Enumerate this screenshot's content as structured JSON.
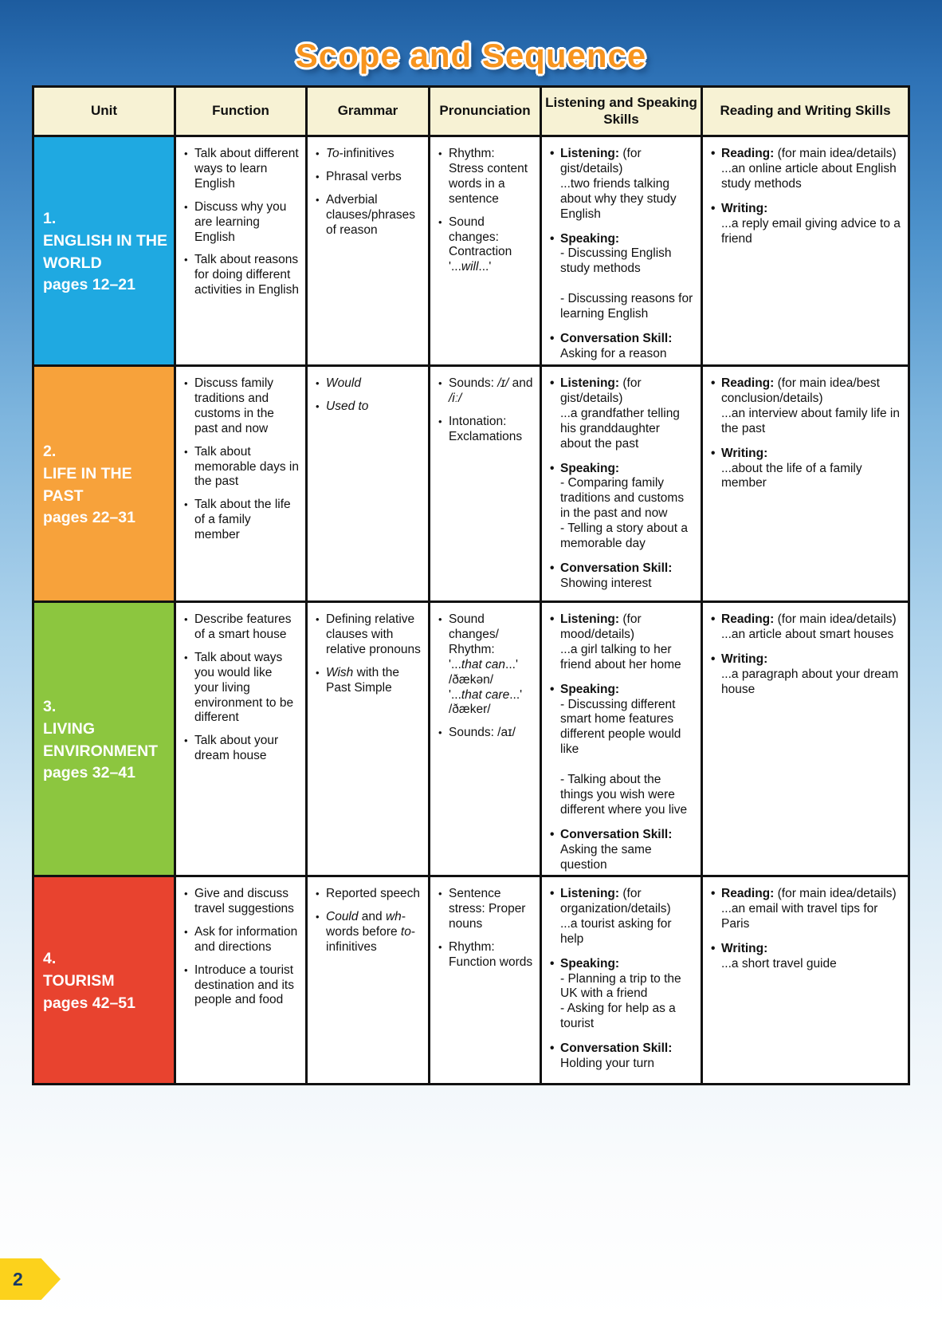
{
  "page": {
    "title": "Scope and Sequence",
    "page_number": "2"
  },
  "colors": {
    "title_orange": "#f7941e",
    "header_bg": "#f7f2d4",
    "background_blue": "#2e72b6",
    "page_tab_yellow": "#fcd21c"
  },
  "table": {
    "headers": [
      "Unit",
      "Function",
      "Grammar",
      "Pronunciation",
      "Listening and Speaking Skills",
      "Reading and Writing Skills"
    ],
    "rows": [
      {
        "unit_number": "1.",
        "unit_name": "ENGLISH IN THE WORLD",
        "unit_pages": "pages 12–21",
        "unit_color": "#1fa9e1",
        "function": [
          [
            {
              "t": "Talk about different ways to learn English"
            }
          ],
          [
            {
              "t": "Discuss why you are learning English"
            }
          ],
          [
            {
              "t": "Talk about reasons for doing different activities in English"
            }
          ]
        ],
        "grammar": [
          [
            {
              "t": "To",
              "s": "i"
            },
            {
              "t": "-infinitives"
            }
          ],
          [
            {
              "t": "Phrasal verbs"
            }
          ],
          [
            {
              "t": "Adverbial clauses/phrases of reason"
            }
          ]
        ],
        "pronunciation": [
          [
            {
              "t": "Rhythm:\nStress content words in a sentence"
            }
          ],
          [
            {
              "t": "Sound changes:\nContraction\n'..."
            },
            {
              "t": "will",
              "s": "i"
            },
            {
              "t": "...'"
            }
          ]
        ],
        "listening_speaking": [
          [
            {
              "t": "Listening:",
              "s": "b"
            },
            {
              "t": " (for gist/details)\n...two friends talking about why they study English"
            }
          ],
          [
            {
              "t": "Speaking:",
              "s": "b"
            },
            {
              "t": "\n- Discussing English study methods\n\n- Discussing reasons for learning English"
            }
          ],
          [
            {
              "t": "Conversation Skill:",
              "s": "b"
            },
            {
              "t": "\nAsking for a reason"
            }
          ]
        ],
        "reading_writing": [
          [
            {
              "t": "Reading:",
              "s": "b"
            },
            {
              "t": " (for main idea/details)\n...an online article about English study methods"
            }
          ],
          [
            {
              "t": "Writing:",
              "s": "b"
            },
            {
              "t": "\n...a reply email giving advice to a friend"
            }
          ]
        ]
      },
      {
        "unit_number": "2.",
        "unit_name": "LIFE IN THE PAST",
        "unit_pages": "pages 22–31",
        "unit_color": "#f7a23b",
        "function": [
          [
            {
              "t": "Discuss family traditions and customs in the past and now"
            }
          ],
          [
            {
              "t": "Talk about memorable days in the past"
            }
          ],
          [
            {
              "t": "Talk about the life of a family member"
            }
          ]
        ],
        "grammar": [
          [
            {
              "t": "Would",
              "s": "i"
            }
          ],
          [
            {
              "t": "Used to",
              "s": "i"
            }
          ]
        ],
        "pronunciation": [
          [
            {
              "t": "Sounds: "
            },
            {
              "t": "/ɪ/",
              "s": "i"
            },
            {
              "t": " and "
            },
            {
              "t": "/iː/",
              "s": "i"
            }
          ],
          [
            {
              "t": "Intonation:\nExclamations"
            }
          ]
        ],
        "listening_speaking": [
          [
            {
              "t": "Listening:",
              "s": "b"
            },
            {
              "t": " (for gist/details)\n...a grandfather telling his granddaughter about the past"
            }
          ],
          [
            {
              "t": "Speaking:",
              "s": "b"
            },
            {
              "t": "\n- Comparing family traditions and customs in the past and now\n- Telling a story about a memorable day"
            }
          ],
          [
            {
              "t": "Conversation Skill:",
              "s": "b"
            },
            {
              "t": "\nShowing interest"
            }
          ]
        ],
        "reading_writing": [
          [
            {
              "t": "Reading:",
              "s": "b"
            },
            {
              "t": " (for main idea/best conclusion/details)\n...an interview about family life in the past"
            }
          ],
          [
            {
              "t": "Writing:",
              "s": "b"
            },
            {
              "t": "\n...about the life of a family member"
            }
          ]
        ]
      },
      {
        "unit_number": "3.",
        "unit_name": "LIVING ENVIRONMENT",
        "unit_pages": "pages 32–41",
        "unit_color": "#8cc63f",
        "function": [
          [
            {
              "t": "Describe features of a smart house"
            }
          ],
          [
            {
              "t": "Talk about ways you would like your living environment to be different"
            }
          ],
          [
            {
              "t": "Talk about your dream house"
            }
          ]
        ],
        "grammar": [
          [
            {
              "t": "Defining relative clauses with relative pronouns"
            }
          ],
          [
            {
              "t": "Wish",
              "s": "i"
            },
            {
              "t": " with the Past Simple"
            }
          ]
        ],
        "pronunciation": [
          [
            {
              "t": "Sound changes/\nRhythm:\n'..."
            },
            {
              "t": "that can",
              "s": "i"
            },
            {
              "t": "...'\n/ðækən/\n'..."
            },
            {
              "t": "that care",
              "s": "i"
            },
            {
              "t": "...'\n/ðæker/"
            }
          ],
          [
            {
              "t": "Sounds: /aɪ/"
            }
          ]
        ],
        "listening_speaking": [
          [
            {
              "t": "Listening:",
              "s": "b"
            },
            {
              "t": " (for mood/details)\n...a girl talking to her friend about her home"
            }
          ],
          [
            {
              "t": "Speaking:",
              "s": "b"
            },
            {
              "t": "\n- Discussing different smart home features different people would like\n\n- Talking about the things you wish were different where you live"
            }
          ],
          [
            {
              "t": "Conversation Skill:",
              "s": "b"
            },
            {
              "t": "\nAsking the same question"
            }
          ]
        ],
        "reading_writing": [
          [
            {
              "t": "Reading:",
              "s": "b"
            },
            {
              "t": " (for main idea/details)\n...an article about smart houses"
            }
          ],
          [
            {
              "t": "Writing:",
              "s": "b"
            },
            {
              "t": "\n...a paragraph about your dream house"
            }
          ]
        ]
      },
      {
        "unit_number": "4.",
        "unit_name": "TOURISM",
        "unit_pages": "pages 42–51",
        "unit_color": "#e8432f",
        "function": [
          [
            {
              "t": "Give and discuss travel suggestions"
            }
          ],
          [
            {
              "t": "Ask for information and directions"
            }
          ],
          [
            {
              "t": "Introduce a tourist destination and its people and food"
            }
          ]
        ],
        "grammar": [
          [
            {
              "t": "Reported speech"
            }
          ],
          [
            {
              "t": "Could",
              "s": "i"
            },
            {
              "t": " and "
            },
            {
              "t": "wh",
              "s": "i"
            },
            {
              "t": "-words before "
            },
            {
              "t": "to",
              "s": "i"
            },
            {
              "t": "-infinitives"
            }
          ]
        ],
        "pronunciation": [
          [
            {
              "t": "Sentence stress: Proper nouns"
            }
          ],
          [
            {
              "t": "Rhythm:\nFunction words"
            }
          ]
        ],
        "listening_speaking": [
          [
            {
              "t": "Listening:",
              "s": "b"
            },
            {
              "t": " (for organization/details)\n...a tourist asking for help"
            }
          ],
          [
            {
              "t": "Speaking:",
              "s": "b"
            },
            {
              "t": "\n- Planning a trip to the UK with a friend\n- Asking for help as a tourist"
            }
          ],
          [
            {
              "t": "Conversation Skill:",
              "s": "b"
            },
            {
              "t": "\nHolding your turn"
            }
          ]
        ],
        "reading_writing": [
          [
            {
              "t": "Reading:",
              "s": "b"
            },
            {
              "t": " (for main idea/details)\n...an email with travel tips for Paris"
            }
          ],
          [
            {
              "t": "Writing:",
              "s": "b"
            },
            {
              "t": "\n...a short travel guide"
            }
          ]
        ]
      }
    ]
  }
}
